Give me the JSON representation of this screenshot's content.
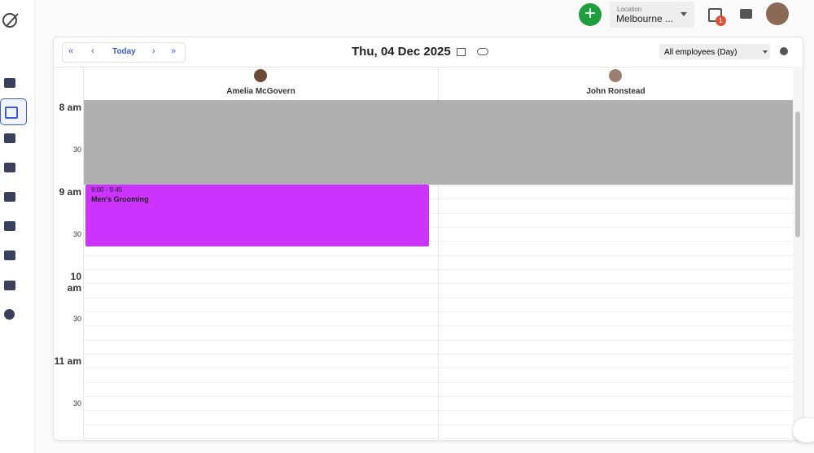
{
  "topbar": {
    "location_label": "Location",
    "location_value": "Melbourne ...",
    "notification_count": "1"
  },
  "toolbar": {
    "today_button": "Today",
    "date": "Thu, 04 Dec 2025",
    "view_select": "All employees (Day)"
  },
  "employees": [
    "Amelia McGovern",
    "John Ronstead"
  ],
  "time_labels": [
    "8 am",
    "30",
    "9 am",
    "30",
    "10 am",
    "30",
    "11 am",
    "30"
  ],
  "event": {
    "time": "9:00 - 9:45",
    "title": "Men's Grooming"
  }
}
